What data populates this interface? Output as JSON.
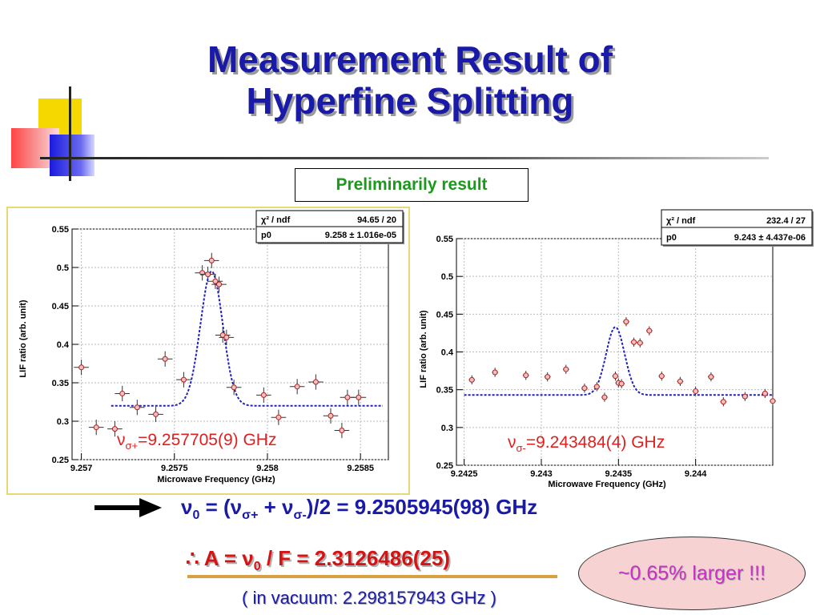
{
  "slide": {
    "title_line1": "Measurement Result of",
    "title_line2": "Hyperfine Splitting",
    "preliminary": "Preliminarily result",
    "nu0": {
      "v": "ν",
      "sub0": "0",
      "eq1": " = (ν",
      "sub_plus": "σ+",
      "mid": " + ν",
      "sub_minus": "σ-",
      "rest": ")/2 = 9.2505945(98) GHz"
    },
    "a_line": {
      "therefore": "∴ A = ν",
      "sub0": "0",
      "rest": " / F = 2.3126486(25)"
    },
    "vacuum": "( in vacuum: 2.298157943 GHz )",
    "larger": "~0.65% larger !!!",
    "colors": {
      "title": "#1a1aa8",
      "green": "#1a9a1a",
      "red": "#d41414",
      "magenta": "#cc2ec8",
      "ellipse_fill": "#f6d2d2"
    },
    "icons": [
      "arrow-right-icon",
      "decorative-squares-logo"
    ]
  },
  "chart_data": [
    {
      "type": "scatter",
      "title": "",
      "xlabel": "Microwave Frequency (GHz)",
      "ylabel": "LIF ratio (arb. unit)",
      "xlim": [
        9.25695,
        9.25865
      ],
      "ylim": [
        0.25,
        0.55
      ],
      "xticks": [
        "9.257",
        "9.2575",
        "9.258",
        "9.2585"
      ],
      "xtick_values": [
        9.257,
        9.2575,
        9.258,
        9.2585
      ],
      "yticks": [
        "0.25",
        "0.3",
        "0.35",
        "0.4",
        "0.45",
        "0.5",
        "0.55"
      ],
      "ytick_values": [
        0.25,
        0.3,
        0.35,
        0.4,
        0.45,
        0.5,
        0.55
      ],
      "grid": true,
      "stats": {
        "row1_label": "χ² / ndf",
        "row1_value": "94.65 / 20",
        "row2_label": "p0",
        "row2_value": "9.258 ± 1.016e-05"
      },
      "result_label": {
        "prefix": "ν",
        "sub": "σ+",
        "value": "=9.257705(9) GHz"
      },
      "fit": {
        "baseline": 0.32,
        "peak": 0.495,
        "center": 9.2577,
        "sigma": 6e-05,
        "xmin": 9.25716,
        "xmax": 9.25862
      },
      "points": {
        "x": [
          9.257,
          9.25708,
          9.25718,
          9.25722,
          9.2573,
          9.2574,
          9.25745,
          9.25755,
          9.25765,
          9.25768,
          9.2577,
          9.25772,
          9.25774,
          9.25776,
          9.25778,
          9.25782,
          9.25798,
          9.25806,
          9.25816,
          9.25826,
          9.25834,
          9.2584,
          9.25843,
          9.25849
        ],
        "y": [
          0.37,
          0.292,
          0.29,
          0.336,
          0.318,
          0.309,
          0.381,
          0.354,
          0.493,
          0.491,
          0.509,
          0.482,
          0.478,
          0.412,
          0.409,
          0.344,
          0.334,
          0.305,
          0.345,
          0.351,
          0.307,
          0.288,
          0.331,
          0.331
        ],
        "xerr": 4e-05,
        "yerr": 0.01
      }
    },
    {
      "type": "scatter",
      "title": "",
      "xlabel": "Microwave Frequency (GHz)",
      "ylabel": "LIF ratio (arb. unit)",
      "xlim": [
        9.24245,
        9.2445
      ],
      "ylim": [
        0.25,
        0.55
      ],
      "xticks": [
        "9.2425",
        "9.243",
        "9.2435",
        "9.244"
      ],
      "xtick_values": [
        9.2425,
        9.243,
        9.2435,
        9.244
      ],
      "yticks": [
        "0.25",
        "0.3",
        "0.35",
        "0.4",
        "0.45",
        "0.5",
        "0.55"
      ],
      "ytick_values": [
        0.25,
        0.3,
        0.35,
        0.4,
        0.45,
        0.5,
        0.55
      ],
      "grid": true,
      "stats": {
        "row1_label": "χ² / ndf",
        "row1_value": "232.4 / 27",
        "row2_label": "p0",
        "row2_value": "9.243 ± 4.437e-06"
      },
      "result_label": {
        "prefix": "ν",
        "sub": "σ-",
        "value": "=9.243484(4) GHz"
      },
      "fit": {
        "baseline": 0.343,
        "peak": 0.433,
        "center": 9.24348,
        "sigma": 6e-05,
        "xmin": 9.2425,
        "xmax": 9.2445
      },
      "points": {
        "x": [
          9.24255,
          9.2427,
          9.2429,
          9.24304,
          9.24316,
          9.24328,
          9.24336,
          9.24341,
          9.24348,
          9.2435,
          9.24352,
          9.24355,
          9.2436,
          9.24364,
          9.2437,
          9.24378,
          9.2439,
          9.244,
          9.2441,
          9.24418,
          9.24432,
          9.24445,
          9.2445
        ],
        "y": [
          0.363,
          0.373,
          0.369,
          0.367,
          0.377,
          0.352,
          0.354,
          0.34,
          0.368,
          0.359,
          0.358,
          0.44,
          0.413,
          0.412,
          0.428,
          0.368,
          0.361,
          0.348,
          0.367,
          0.334,
          0.341,
          0.345,
          0.335
        ]
      }
    }
  ]
}
